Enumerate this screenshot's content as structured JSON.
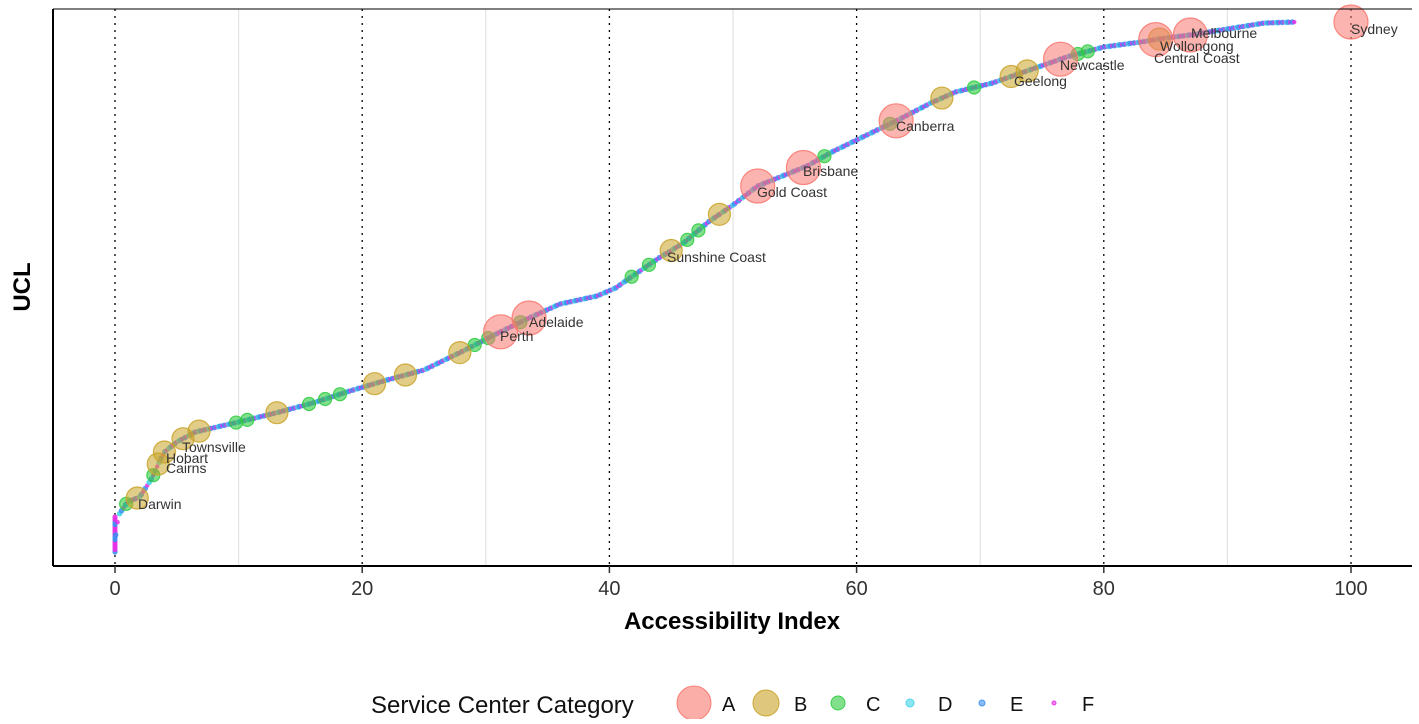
{
  "chart_data": {
    "type": "scatter",
    "xlabel": "Accessibility Index",
    "ylabel": "UCL",
    "xlim": [
      0,
      100
    ],
    "xticks": [
      "0",
      "20",
      "40",
      "60",
      "80",
      "100"
    ],
    "grid": "vertical",
    "legend": {
      "title": "Service Center Category",
      "placement": "bottom",
      "entries": [
        {
          "label": "A",
          "color": "#F8766D"
        },
        {
          "label": "B",
          "color": "#C9A227"
        },
        {
          "label": "C",
          "color": "#2ECC40"
        },
        {
          "label": "D",
          "color": "#3FD3E8"
        },
        {
          "label": "E",
          "color": "#3A8FF0"
        },
        {
          "label": "F",
          "color": "#E62EE6"
        }
      ]
    },
    "labeled_points": [
      {
        "name": "Sydney",
        "x": 100,
        "category": "A"
      },
      {
        "name": "Melbourne",
        "x": 87,
        "category": "A"
      },
      {
        "name": "Wollongong",
        "x": 84.5,
        "category": "B"
      },
      {
        "name": "Central Coast",
        "x": 84.2,
        "category": "A"
      },
      {
        "name": "Newcastle",
        "x": 76.5,
        "category": "A"
      },
      {
        "name": "Geelong",
        "x": 72.5,
        "category": "B"
      },
      {
        "name": "Canberra",
        "x": 63.2,
        "category": "A"
      },
      {
        "name": "Brisbane",
        "x": 55.7,
        "category": "A"
      },
      {
        "name": "Gold Coast",
        "x": 52,
        "category": "A"
      },
      {
        "name": "Sunshine Coast",
        "x": 45,
        "category": "B"
      },
      {
        "name": "Adelaide",
        "x": 33.5,
        "category": "A"
      },
      {
        "name": "Perth",
        "x": 31.2,
        "category": "A"
      },
      {
        "name": "Townsville",
        "x": 5.5,
        "category": "B"
      },
      {
        "name": "Hobart",
        "x": 4,
        "category": "B"
      },
      {
        "name": "Cairns",
        "x": 3.5,
        "category": "B"
      },
      {
        "name": "Darwin",
        "x": 1.8,
        "category": "B"
      }
    ],
    "other_points": [
      {
        "x": 6.8,
        "category": "B"
      },
      {
        "x": 13.1,
        "category": "B"
      },
      {
        "x": 21,
        "category": "B"
      },
      {
        "x": 23.5,
        "category": "B"
      },
      {
        "x": 27.9,
        "category": "B"
      },
      {
        "x": 48.9,
        "category": "B"
      },
      {
        "x": 66.9,
        "category": "B"
      },
      {
        "x": 73.8,
        "category": "B"
      },
      {
        "x": 0.9,
        "category": "C"
      },
      {
        "x": 3.1,
        "category": "C"
      },
      {
        "x": 9.8,
        "category": "C"
      },
      {
        "x": 10.7,
        "category": "C"
      },
      {
        "x": 15.7,
        "category": "C"
      },
      {
        "x": 17,
        "category": "C"
      },
      {
        "x": 18.2,
        "category": "C"
      },
      {
        "x": 29.1,
        "category": "C"
      },
      {
        "x": 30.2,
        "category": "C"
      },
      {
        "x": 32.8,
        "category": "C"
      },
      {
        "x": 41.8,
        "category": "C"
      },
      {
        "x": 43.2,
        "category": "C"
      },
      {
        "x": 46.3,
        "category": "C"
      },
      {
        "x": 47.2,
        "category": "C"
      },
      {
        "x": 57.4,
        "category": "C"
      },
      {
        "x": 62.7,
        "category": "C"
      },
      {
        "x": 69.5,
        "category": "C"
      },
      {
        "x": 77.9,
        "category": "C"
      },
      {
        "x": 78.7,
        "category": "C"
      }
    ]
  }
}
